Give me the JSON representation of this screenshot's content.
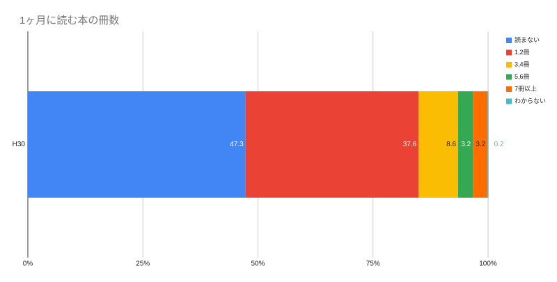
{
  "chart_data": {
    "type": "stacked_bar_horizontal",
    "title": "1ヶ月に読む本の冊数",
    "categories": [
      "H30"
    ],
    "series": [
      {
        "name": "読まない",
        "color": "#4285f4",
        "values": [
          47.3
        ]
      },
      {
        "name": "1,2冊",
        "color": "#ea4335",
        "values": [
          37.6
        ]
      },
      {
        "name": "3,4冊",
        "color": "#fbbc04",
        "values": [
          8.6
        ]
      },
      {
        "name": "5,6冊",
        "color": "#34a853",
        "values": [
          3.2
        ]
      },
      {
        "name": "7冊以上",
        "color": "#ff6d01",
        "values": [
          3.2
        ]
      },
      {
        "name": "わからない",
        "color": "#46bdc6",
        "values": [
          0.2
        ]
      }
    ],
    "xlim": [
      0,
      100
    ],
    "xticks": [
      {
        "value": 0,
        "label": "0%"
      },
      {
        "value": 25,
        "label": "25%"
      },
      {
        "value": 50,
        "label": "50%"
      },
      {
        "value": 75,
        "label": "75%"
      },
      {
        "value": 100,
        "label": "100%"
      }
    ],
    "grid": true,
    "legend": "right"
  }
}
